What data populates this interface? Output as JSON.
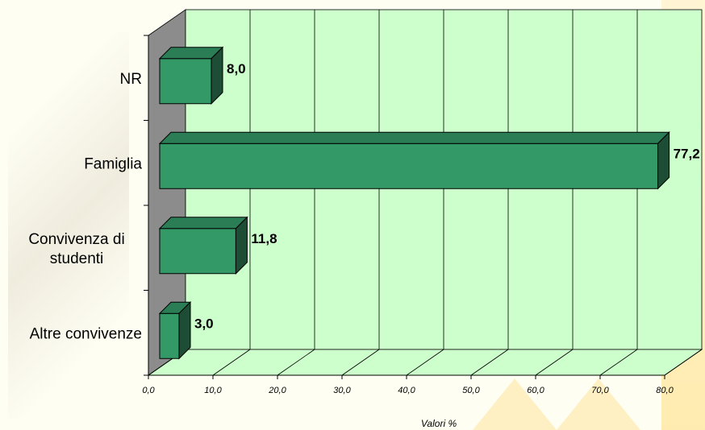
{
  "chart_data": {
    "type": "bar",
    "orientation": "horizontal",
    "three_d": true,
    "categories": [
      "NR",
      "Famiglia",
      "Convivenza di\nstudenti",
      "Altre convivenze"
    ],
    "values": [
      8.0,
      77.2,
      11.8,
      3.0
    ],
    "value_labels": [
      "8,0",
      "77,2",
      "11,8",
      "3,0"
    ],
    "xticks": [
      "0,0",
      "10,0",
      "20,0",
      "30,0",
      "40,0",
      "50,0",
      "60,0",
      "70,0",
      "80,0"
    ],
    "xlim": [
      0,
      80
    ],
    "xlabel": "Valori %",
    "ylabel": "",
    "title": "",
    "grid": true,
    "colors": {
      "bar_front": "#339966",
      "bar_top": "#2A7D55",
      "bar_side": "#1D4D35",
      "wall": "#CCFFCC",
      "side_wall": "#8C8C8C",
      "grid": "#000000"
    }
  }
}
